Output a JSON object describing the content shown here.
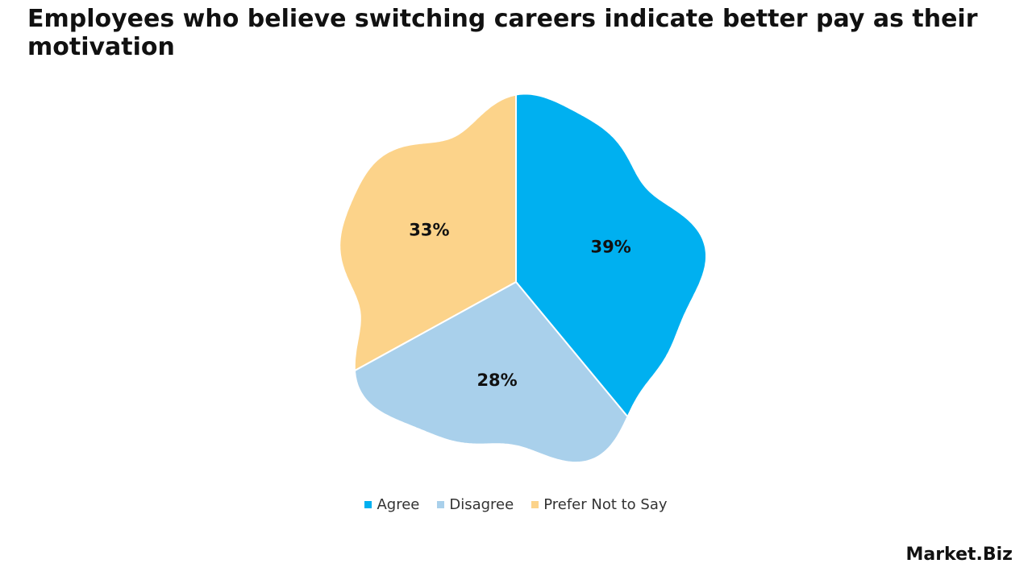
{
  "chart_data": {
    "type": "pie",
    "title": "Employees who believe switching careers indicate better pay as their motivation",
    "categories": [
      "Agree",
      "Disagree",
      "Prefer Not to Say"
    ],
    "values": [
      39,
      28,
      33
    ],
    "value_labels": [
      "39%",
      "28%",
      "33%"
    ],
    "colors": [
      "#00b0f0",
      "#a9d0eb",
      "#fcd38a"
    ],
    "legend": "bottom"
  },
  "logo": "Market.Biz"
}
